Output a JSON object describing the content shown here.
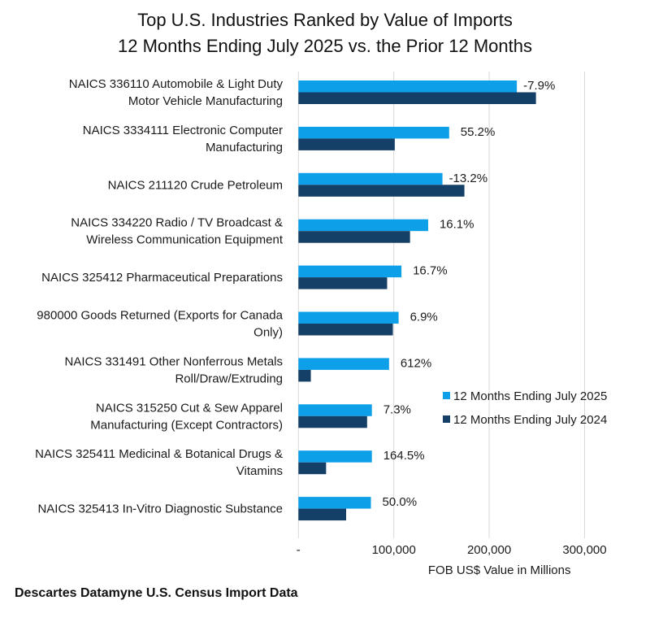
{
  "chart_data": {
    "type": "bar",
    "orientation": "horizontal",
    "title": [
      "Top U.S. Industries Ranked by Value of Imports",
      "12 Months Ending July 2025 vs. the Prior 12 Months"
    ],
    "xlabel": "FOB US$ Value in Millions",
    "ylabel": "",
    "xlim": [
      0,
      350000
    ],
    "xticks": [
      0,
      100000,
      200000,
      300000
    ],
    "xtick_labels": [
      "-",
      "100,000",
      "200,000",
      "300,000"
    ],
    "grid": "vertical",
    "legend_position": "right-middle",
    "categories": [
      [
        "NAICS 336110 Automobile & Light Duty",
        "Motor Vehicle Manufacturing"
      ],
      [
        "NAICS 3334111 Electronic Computer",
        "Manufacturing"
      ],
      [
        "NAICS 211120 Crude Petroleum"
      ],
      [
        "NAICS 334220 Radio / TV Broadcast &",
        "Wireless Communication Equipment"
      ],
      [
        "NAICS 325412 Pharmaceutical Preparations"
      ],
      [
        "980000 Goods Returned (Exports for Canada",
        "Only)"
      ],
      [
        "NAICS 331491 Other Nonferrous Metals",
        "Roll/Draw/Extruding"
      ],
      [
        "NAICS 315250 Cut & Sew Apparel",
        "Manufacturing (Except Contractors)"
      ],
      [
        "NAICS 325411 Medicinal & Botanical Drugs &",
        "Vitamins"
      ],
      [
        "NAICS 325413 In-Vitro Diagnostic Substance"
      ]
    ],
    "series": [
      {
        "name": "12 Months Ending July 2025",
        "color": "#0da0e8",
        "values": [
          229000,
          158000,
          151000,
          136000,
          108000,
          105000,
          95000,
          77000,
          77000,
          76000
        ]
      },
      {
        "name": "12 Months Ending July 2024",
        "color": "#143f66",
        "values": [
          249000,
          101000,
          174000,
          117000,
          93000,
          99000,
          13000,
          72000,
          29000,
          50000
        ]
      }
    ],
    "data_labels": [
      "-7.9%",
      "55.2%",
      "-13.2%",
      "16.1%",
      "16.7%",
      "6.9%",
      "612%",
      "7.3%",
      "164.5%",
      "50.0%"
    ]
  },
  "source": "Descartes Datamyne U.S. Census Import Data"
}
